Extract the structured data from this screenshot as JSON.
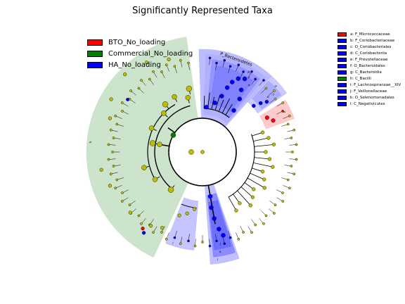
{
  "title": "Significantly Represented Taxa",
  "colors": {
    "BTO": "#ff0000",
    "Commercial": "#008000",
    "HA": "#0000ff",
    "nonsig": "#bcbc00",
    "shade_red": "#ffb4b4",
    "shade_green": "#b7d9b7",
    "shade_blue": "#a6a6ff"
  },
  "legend": [
    {
      "label": "BTO_No_loading",
      "group": "BTO"
    },
    {
      "label": "Commercial_No_loading",
      "group": "Commercial"
    },
    {
      "label": "HA_No_loading",
      "group": "HA"
    }
  ],
  "taxa_legend": [
    {
      "label": "a: F_Micrococcaceae",
      "group": "BTO"
    },
    {
      "label": "b: F_Coriobacteriaceae",
      "group": "HA"
    },
    {
      "label": "c: O_Coriobacteriales",
      "group": "HA"
    },
    {
      "label": "d: C_Coriobacteriia",
      "group": "HA"
    },
    {
      "label": "e: F_Prevotellaceae",
      "group": "HA"
    },
    {
      "label": "f: O_Bacteroidales",
      "group": "HA"
    },
    {
      "label": "g: C_Bacteroidia",
      "group": "HA"
    },
    {
      "label": "h: C_Bacilli",
      "group": "Commercial"
    },
    {
      "label": "i: F_Lachnospiraceae__XIV",
      "group": "HA"
    },
    {
      "label": "j: F_Veillonellaceae",
      "group": "HA"
    },
    {
      "label": "k: O_Selenomonadales",
      "group": "HA"
    },
    {
      "label": "l: C_Negativicutes",
      "group": "HA"
    }
  ],
  "chart_data": {
    "type": "cladogram",
    "title": "Significantly Represented Taxa",
    "highlighted_clades": [
      {
        "label": "a",
        "group": "BTO"
      },
      {
        "label": "b",
        "group": "HA"
      },
      {
        "label": "c",
        "group": "HA"
      },
      {
        "label": "d",
        "group": "HA"
      },
      {
        "label": "e",
        "group": "HA"
      },
      {
        "label": "f",
        "group": "HA"
      },
      {
        "label": "g",
        "group": "HA"
      },
      {
        "label": "h",
        "group": "Commercial"
      },
      {
        "label": "i",
        "group": "HA"
      },
      {
        "label": "j",
        "group": "HA"
      },
      {
        "label": "k",
        "group": "HA"
      },
      {
        "label": "l",
        "group": "HA"
      },
      {
        "label": "P_Bacteroidetes",
        "group": "HA"
      }
    ],
    "sector_labels": [
      "P_Bacteroidetes",
      "a",
      "b",
      "c",
      "d",
      "e",
      "f",
      "g",
      "h",
      "i",
      "j",
      "k",
      "l"
    ]
  }
}
